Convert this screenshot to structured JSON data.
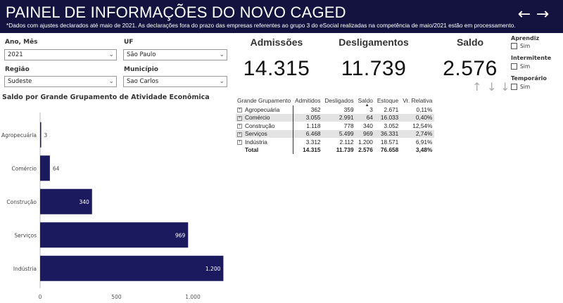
{
  "header": {
    "title": "PAINEL DE INFORMAÇÕES DO NOVO CAGED",
    "note": "*Dados com ajustes declarados até maio de 2021. As declarações fora do prazo das empresas referentes ao grupo 3 do eSocial realizadas na competência de maio/2021 estão em processamento.",
    "back_icon": "←",
    "forward_icon": "→"
  },
  "filters": {
    "ano_mes": {
      "label": "Ano, Mês",
      "value": "2021"
    },
    "uf": {
      "label": "UF",
      "value": "São Paulo"
    },
    "regiao": {
      "label": "Região",
      "value": "Sudeste"
    },
    "municipio": {
      "label": "Município",
      "value": "Sao Carlos"
    }
  },
  "kpis": {
    "admissoes": {
      "label": "Admissões",
      "value": "14.315"
    },
    "desligamentos": {
      "label": "Desligamentos",
      "value": "11.739"
    },
    "saldo": {
      "label": "Saldo",
      "value": "2.576"
    }
  },
  "sidebar": {
    "aprendiz": {
      "label": "Aprendiz",
      "option": "Sim"
    },
    "intermitente": {
      "label": "Intermitente",
      "option": "Sim"
    },
    "temporario": {
      "label": "Temporário",
      "option": "Sim"
    }
  },
  "table": {
    "headers": [
      "Grande Grupamento",
      "Admitidos",
      "Desligados",
      "Saldo",
      "Estoque",
      "Vr. Relativa"
    ],
    "rows": [
      [
        "Agropecuária",
        "362",
        "359",
        "3",
        "2.671",
        "0,11%"
      ],
      [
        "Comércio",
        "3.055",
        "2.991",
        "64",
        "16.033",
        "0,40%"
      ],
      [
        "Construção",
        "1.118",
        "778",
        "340",
        "3.052",
        "12,54%"
      ],
      [
        "Serviços",
        "6.468",
        "5.499",
        "969",
        "36.331",
        "2,74%"
      ],
      [
        "Indústria",
        "3.312",
        "2.112",
        "1.200",
        "18.571",
        "6,91%"
      ]
    ],
    "total": [
      "Total",
      "14.315",
      "11.739",
      "2.576",
      "76.658",
      "3,48%"
    ]
  },
  "chart_data": {
    "type": "bar",
    "orientation": "horizontal",
    "title": "Saldo por Grande Grupamento de Atividade Econômica",
    "categories": [
      "Agropecuária",
      "Comércio",
      "Construção",
      "Serviços",
      "Indústria"
    ],
    "values": [
      3,
      64,
      340,
      969,
      1200
    ],
    "value_labels": [
      "3",
      "64",
      "340",
      "969",
      "1.200"
    ],
    "xticks": [
      0,
      500,
      1000
    ],
    "xtick_labels": [
      "0",
      "500",
      "1.000"
    ],
    "xlim": [
      0,
      1200
    ],
    "bar_color": "#1c1a5e"
  },
  "colors": {
    "header_bg": "#141340",
    "bar": "#1c1a5e"
  }
}
